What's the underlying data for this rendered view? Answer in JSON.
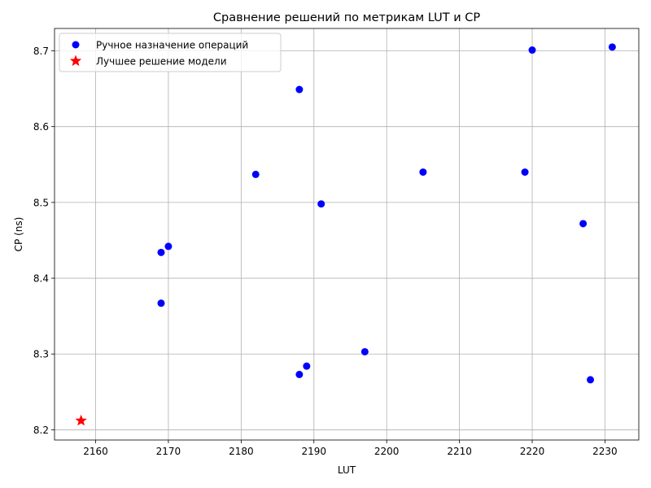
{
  "chart_data": {
    "type": "scatter",
    "title": "Сравнение решений по метрикам LUT и CP",
    "xlabel": "LUT",
    "ylabel": "CP (ns)",
    "xlim": [
      2154.35,
      2234.65
    ],
    "ylim": [
      8.1865,
      8.7295
    ],
    "xticks": [
      "2160",
      "2170",
      "2180",
      "2190",
      "2200",
      "2210",
      "2220",
      "2230"
    ],
    "yticks": [
      "8.2",
      "8.3",
      "8.4",
      "8.5",
      "8.6",
      "8.7"
    ],
    "grid": true,
    "legend": "upper-left",
    "series": [
      {
        "name": "Ручное назначение операций",
        "marker": "circle",
        "color": "#0000ff",
        "points": [
          {
            "x": 2169,
            "y": 8.434
          },
          {
            "x": 2170,
            "y": 8.442
          },
          {
            "x": 2169,
            "y": 8.367
          },
          {
            "x": 2182,
            "y": 8.537
          },
          {
            "x": 2188,
            "y": 8.649
          },
          {
            "x": 2191,
            "y": 8.498
          },
          {
            "x": 2188,
            "y": 8.273
          },
          {
            "x": 2189,
            "y": 8.284
          },
          {
            "x": 2197,
            "y": 8.303
          },
          {
            "x": 2205,
            "y": 8.54
          },
          {
            "x": 2219,
            "y": 8.54
          },
          {
            "x": 2220,
            "y": 8.701
          },
          {
            "x": 2227,
            "y": 8.472
          },
          {
            "x": 2228,
            "y": 8.266
          },
          {
            "x": 2231,
            "y": 8.705
          }
        ]
      },
      {
        "name": "Лучшее решение модели",
        "marker": "star",
        "color": "#ff0000",
        "points": [
          {
            "x": 2158,
            "y": 8.212
          }
        ]
      }
    ]
  }
}
